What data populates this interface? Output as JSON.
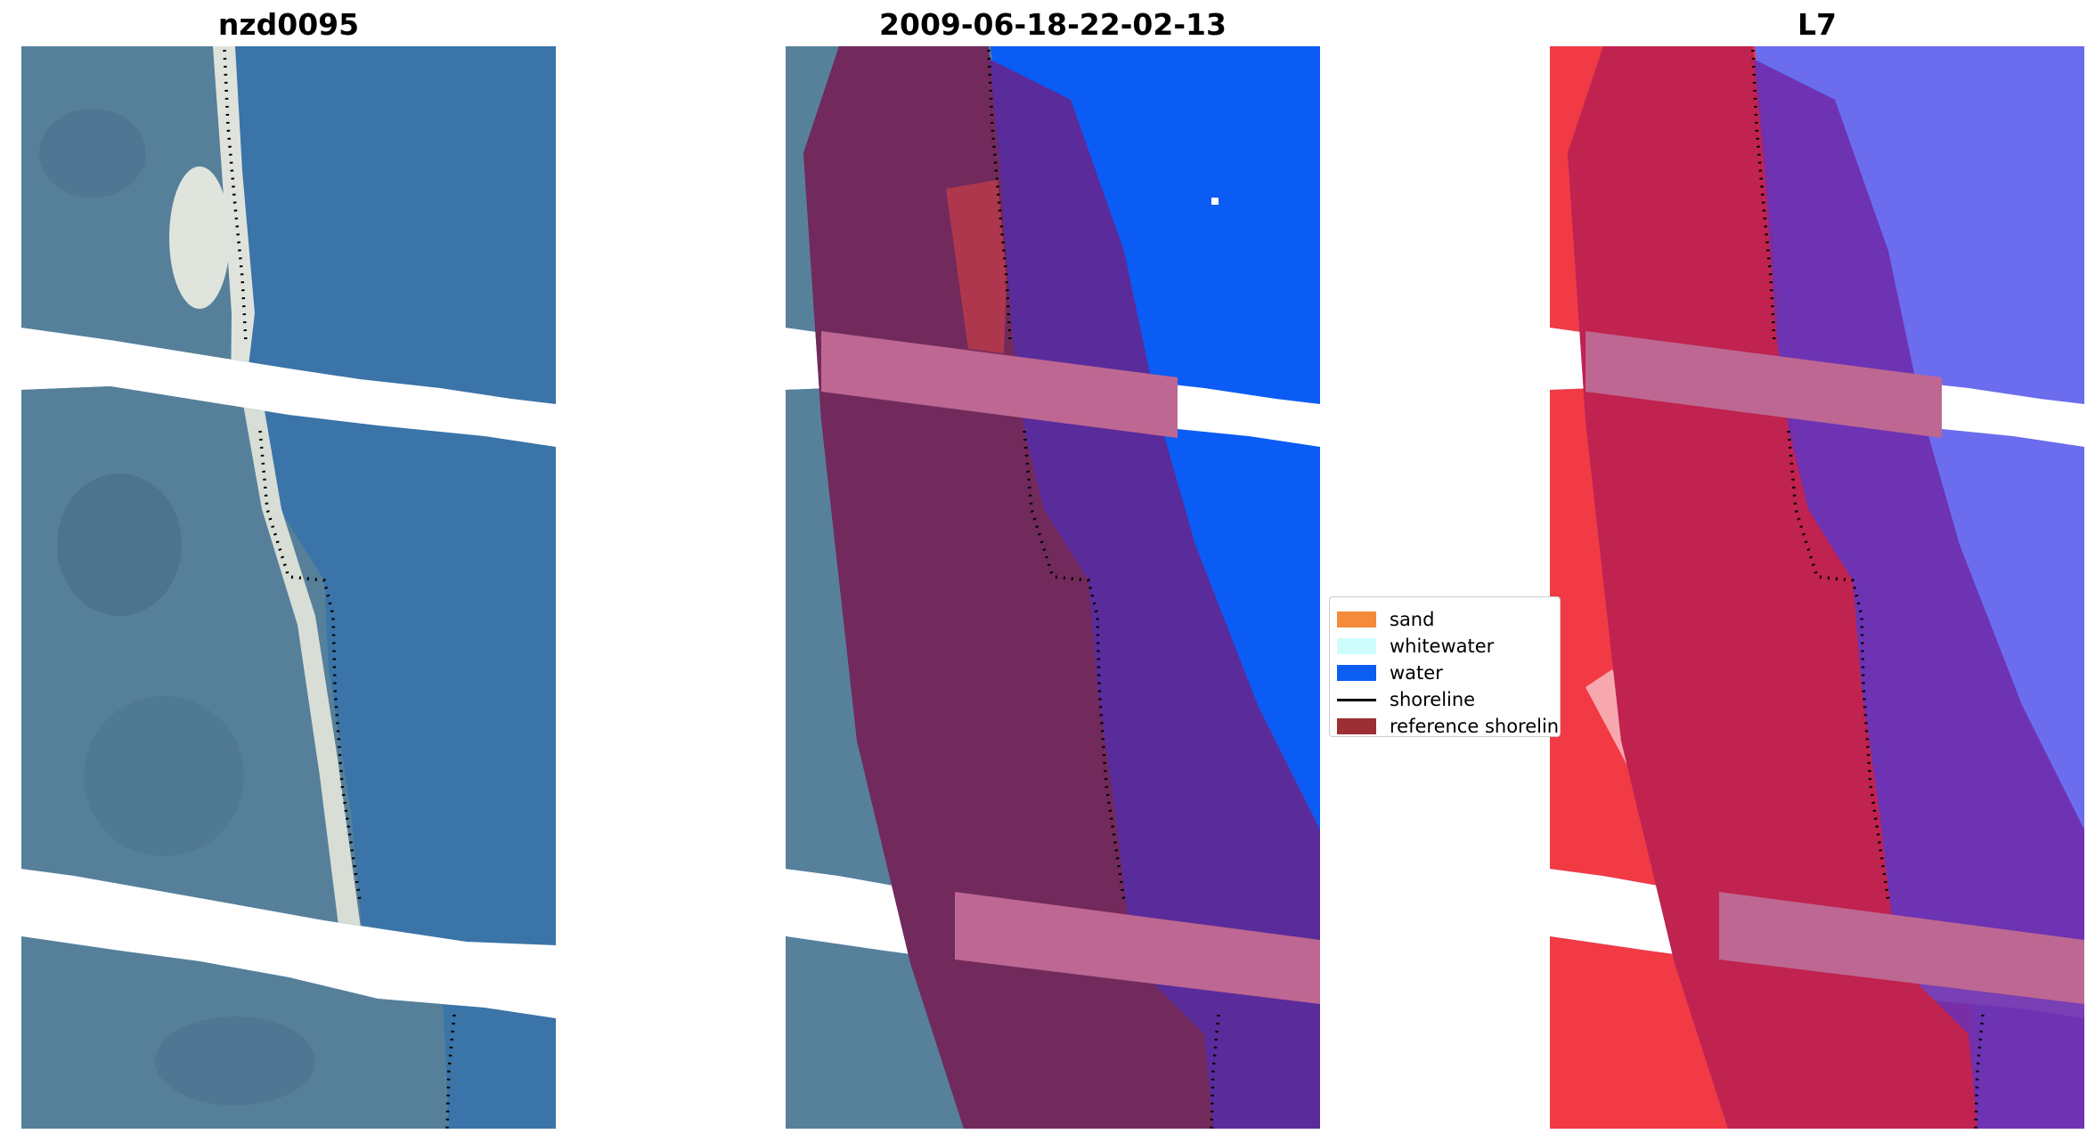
{
  "panels": {
    "rgb": {
      "title": "nzd0095"
    },
    "classified": {
      "title": "2009-06-18-22-02-13"
    },
    "index": {
      "title": "L7"
    }
  },
  "legend": {
    "items": [
      {
        "label": "sand",
        "color": "#f58a3a"
      },
      {
        "label": "whitewater",
        "color": "#cdfdfb"
      },
      {
        "label": "water",
        "color": "#0c5df2"
      },
      {
        "label": "shoreline",
        "color": "#000000"
      },
      {
        "label": "reference shoreline",
        "color": "#9c2f33"
      }
    ]
  },
  "colors": {
    "ocean": "#3a74a8",
    "land": "#56809a",
    "beach": "#dfe3dc",
    "classified_water": "#0b5cf5",
    "buffer_purple": "#5a2b9a",
    "buffer_land": "#722a5c",
    "buffer_band": "#bd6792",
    "index_red": "#f23a45",
    "index_blue": "#6c6cee",
    "index_crimson": "#c0234f"
  }
}
